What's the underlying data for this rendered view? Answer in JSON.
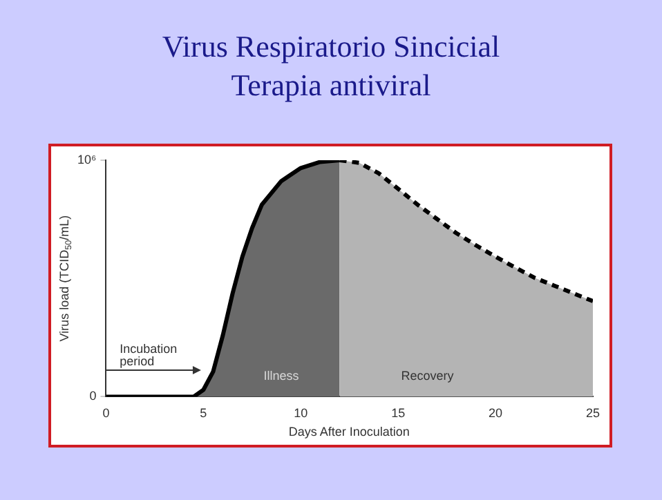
{
  "chart_data": {
    "type": "area",
    "title": "Virus Respiratorio Sincicial",
    "subtitle": "Terapia antiviral",
    "xlabel": "Days After Inoculation",
    "ylabel": "Virus load (TCID$_{50}$/mL)",
    "xlim": [
      0,
      25
    ],
    "xticks": [
      0,
      5,
      10,
      15,
      20,
      25
    ],
    "ylim": [
      0,
      1000000
    ],
    "yticks": [
      0,
      {
        "value": 1000000,
        "label": "10⁶"
      }
    ],
    "series": [
      {
        "color": "#6a6a6a",
        "line_style": "solid",
        "x": [
          0,
          1,
          2,
          3,
          4,
          4.5,
          5,
          5.5,
          6,
          6.5,
          7,
          7.5,
          8,
          9,
          10,
          11,
          12
        ],
        "values": [
          0,
          0,
          0,
          0,
          0,
          0,
          29000,
          106000,
          260000,
          437000,
          592000,
          713000,
          812000,
          912000,
          967000,
          993000,
          1000000
        ]
      },
      {
        "color": "#b4b4b4",
        "line_style": "dashed",
        "x": [
          12,
          13,
          14,
          15,
          16,
          17,
          18,
          19,
          20,
          21,
          22,
          23,
          24,
          25
        ],
        "values": [
          1000000,
          989000,
          945000,
          879000,
          812000,
          751000,
          691000,
          640000,
          592000,
          547000,
          503000,
          470000,
          437000,
          404000
        ]
      }
    ],
    "annotations": [
      "Incubation\nperiod",
      "Illness",
      "Recovery"
    ],
    "grid": false,
    "legend": false,
    "marker": "none"
  }
}
